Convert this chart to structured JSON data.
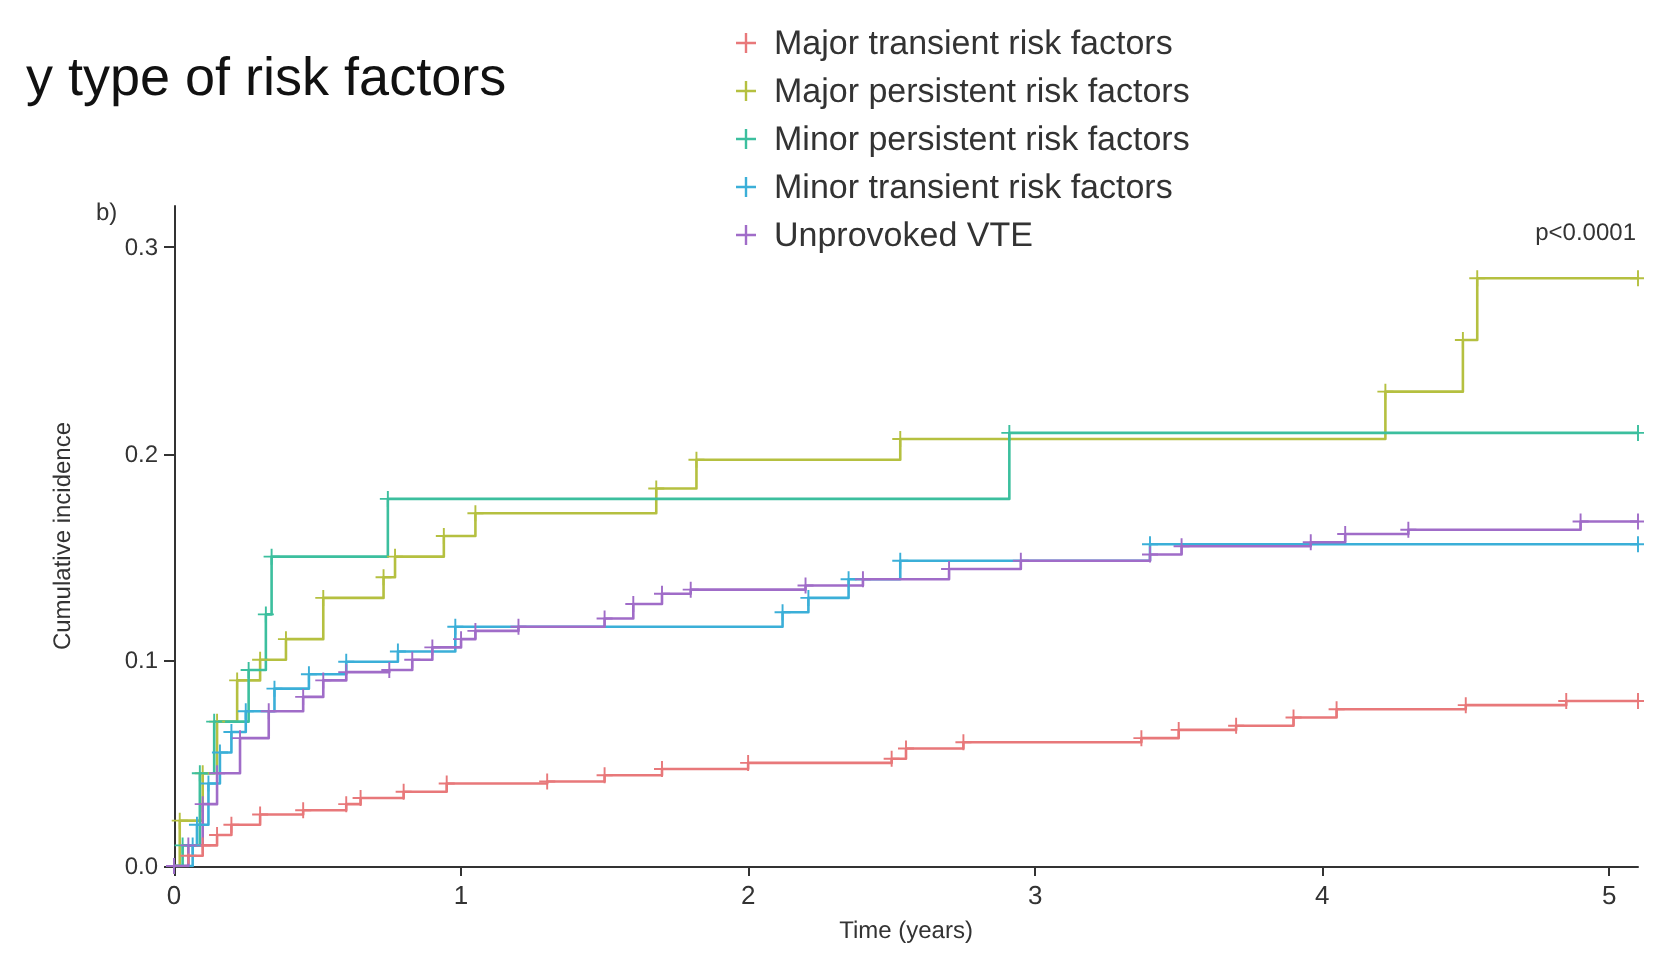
{
  "chart_data": {
    "type": "step",
    "title": "y type of risk factors",
    "xlabel": "Time (years)",
    "ylabel": "Cumulative incidence",
    "annotations": [
      "b)",
      "p<0.0001"
    ],
    "xlim": [
      0,
      5.1
    ],
    "xticks": [
      0,
      1,
      2,
      3,
      4,
      5
    ],
    "ylim": [
      0,
      0.32
    ],
    "yticks": [
      {
        "value": 0,
        "label": "0.0"
      },
      0.1,
      0.2,
      0.3
    ],
    "grid": false,
    "legend": "top right",
    "marker": "cross",
    "line_style": "solid",
    "series": [
      {
        "name": "Major transient risk factors",
        "color": "#e8787a",
        "x": [
          0,
          0.05,
          0.1,
          0.15,
          0.2,
          0.3,
          0.45,
          0.6,
          0.65,
          0.8,
          0.95,
          1.3,
          1.5,
          1.7,
          2.0,
          2.5,
          2.55,
          2.75,
          3.37,
          3.5,
          3.7,
          3.9,
          4.05,
          4.5,
          4.85,
          5.1
        ],
        "values": [
          0,
          0.005,
          0.01,
          0.015,
          0.02,
          0.025,
          0.027,
          0.03,
          0.033,
          0.036,
          0.04,
          0.041,
          0.044,
          0.047,
          0.05,
          0.052,
          0.057,
          0.06,
          0.062,
          0.066,
          0.068,
          0.072,
          0.076,
          0.078,
          0.08,
          0.08
        ]
      },
      {
        "name": "Major persistent risk factors",
        "color": "#b5c040",
        "x": [
          0,
          0.02,
          0.1,
          0.15,
          0.22,
          0.3,
          0.39,
          0.52,
          0.73,
          0.77,
          0.94,
          1.05,
          1.68,
          1.82,
          2.53,
          4.22,
          4.49,
          4.54,
          5.1
        ],
        "values": [
          0,
          0.022,
          0.045,
          0.07,
          0.09,
          0.1,
          0.11,
          0.13,
          0.14,
          0.15,
          0.16,
          0.171,
          0.183,
          0.197,
          0.207,
          0.23,
          0.255,
          0.285,
          0.285
        ]
      },
      {
        "name": "Minor persistent risk factors",
        "color": "#3cbf9e",
        "x": [
          0,
          0.03,
          0.09,
          0.14,
          0.26,
          0.32,
          0.34,
          0.745,
          2.91,
          5.1
        ],
        "values": [
          0,
          0.01,
          0.045,
          0.07,
          0.095,
          0.122,
          0.15,
          0.178,
          0.21,
          0.21
        ]
      },
      {
        "name": "Minor transient risk factors",
        "color": "#3bafd8",
        "x": [
          0,
          0.065,
          0.08,
          0.12,
          0.16,
          0.2,
          0.25,
          0.35,
          0.47,
          0.6,
          0.78,
          0.98,
          2.12,
          2.21,
          2.35,
          2.53,
          3.4,
          5.1
        ],
        "values": [
          0,
          0.01,
          0.02,
          0.04,
          0.055,
          0.065,
          0.075,
          0.086,
          0.093,
          0.099,
          0.104,
          0.116,
          0.123,
          0.13,
          0.139,
          0.148,
          0.156,
          0.156
        ]
      },
      {
        "name": "Unprovoked VTE",
        "color": "#a06cc8",
        "x": [
          0,
          0.05,
          0.1,
          0.15,
          0.23,
          0.33,
          0.45,
          0.52,
          0.6,
          0.75,
          0.83,
          0.9,
          1.0,
          1.05,
          1.2,
          1.5,
          1.6,
          1.7,
          1.8,
          2.2,
          2.4,
          2.7,
          2.95,
          3.4,
          3.51,
          3.96,
          4.08,
          4.3,
          4.9,
          5.1
        ],
        "values": [
          0,
          0.01,
          0.03,
          0.045,
          0.062,
          0.075,
          0.082,
          0.09,
          0.094,
          0.095,
          0.1,
          0.106,
          0.11,
          0.114,
          0.116,
          0.12,
          0.127,
          0.132,
          0.134,
          0.136,
          0.139,
          0.144,
          0.148,
          0.151,
          0.155,
          0.157,
          0.161,
          0.163,
          0.167,
          0.167
        ]
      }
    ]
  }
}
